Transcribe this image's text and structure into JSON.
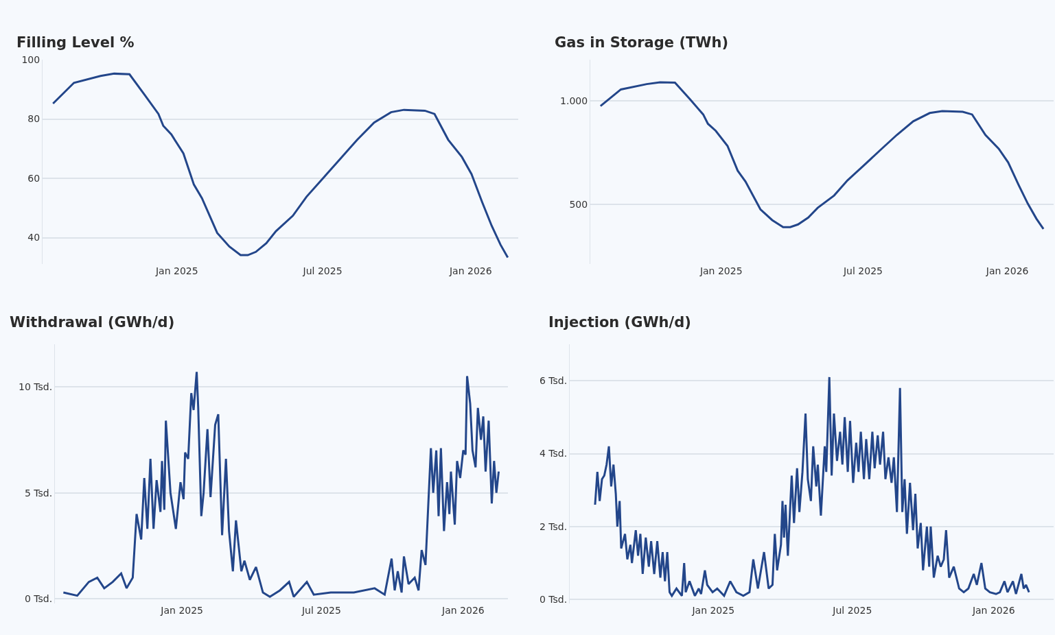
{
  "chart_data": [
    {
      "type": "line",
      "title": "Filling Level %",
      "color": "#23468a",
      "grid": "y",
      "x": [
        "2024-07-31",
        "2024-08-26",
        "2024-09-28",
        "2024-10-15",
        "2024-11-03",
        "2024-11-22",
        "2024-12-09",
        "2024-12-15",
        "2024-12-25",
        "2025-01-09",
        "2025-01-22",
        "2025-02-01",
        "2025-02-20",
        "2025-03-07",
        "2025-03-21",
        "2025-03-30",
        "2025-04-09",
        "2025-04-22",
        "2025-05-04",
        "2025-05-25",
        "2025-06-11",
        "2025-07-02",
        "2025-07-23",
        "2025-08-13",
        "2025-09-03",
        "2025-09-24",
        "2025-10-10",
        "2025-11-05",
        "2025-11-17",
        "2025-12-04",
        "2025-12-21",
        "2026-01-02",
        "2026-01-15",
        "2026-01-27",
        "2026-02-07",
        "2026-02-16"
      ],
      "values": [
        85.2,
        92.2,
        94.5,
        95.3,
        95.1,
        88.1,
        81.7,
        77.7,
        74.8,
        68.4,
        57.9,
        53.3,
        41.6,
        37,
        34.1,
        34.1,
        35.2,
        38.1,
        42.2,
        47.4,
        53.8,
        60.2,
        66.6,
        73,
        78.8,
        82.3,
        83.1,
        82.8,
        81.7,
        73,
        67.2,
        61.4,
        52.1,
        44,
        37.6,
        33.3
      ],
      "xlim": [
        "2024-07-18",
        "2026-03-01"
      ],
      "ylim": [
        31,
        100
      ],
      "yticks": [
        40,
        60,
        80,
        100
      ],
      "xticks": [
        {
          "value": "2025-01-01",
          "label": "Jan 2025"
        },
        {
          "value": "2025-07-01",
          "label": "Jul 2025"
        },
        {
          "value": "2026-01-01",
          "label": "Jan 2026"
        }
      ]
    },
    {
      "type": "line",
      "title": "Gas in Storage (TWh)",
      "color": "#23468a",
      "grid": "y",
      "x": [
        "2024-07-31",
        "2024-08-26",
        "2024-09-28",
        "2024-10-15",
        "2024-11-03",
        "2024-11-22",
        "2024-12-09",
        "2024-12-15",
        "2024-12-25",
        "2025-01-09",
        "2025-01-22",
        "2025-02-01",
        "2025-02-20",
        "2025-03-07",
        "2025-03-21",
        "2025-03-30",
        "2025-04-09",
        "2025-04-22",
        "2025-05-04",
        "2025-05-25",
        "2025-06-11",
        "2025-07-02",
        "2025-07-23",
        "2025-08-13",
        "2025-09-03",
        "2025-09-24",
        "2025-10-10",
        "2025-11-05",
        "2025-11-17",
        "2025-12-04",
        "2025-12-21",
        "2026-01-02",
        "2026-01-15",
        "2026-01-27",
        "2026-02-07",
        "2026-02-16"
      ],
      "values": [
        976,
        1056,
        1082,
        1091,
        1089,
        1009,
        935,
        890,
        856,
        783,
        663,
        610,
        476,
        424,
        390,
        390,
        403,
        436,
        483,
        543,
        616,
        689,
        763,
        836,
        902,
        942,
        951,
        948,
        935,
        836,
        769,
        703,
        597,
        504,
        431,
        381
      ],
      "xlim": [
        "2024-07-18",
        "2026-03-01"
      ],
      "ylim": [
        210,
        1200
      ],
      "yticks": [
        {
          "value": 500,
          "label": "500"
        },
        {
          "value": 1000,
          "label": "1.000"
        }
      ],
      "xticks": [
        {
          "value": "2025-01-01",
          "label": "Jan 2025"
        },
        {
          "value": "2025-07-01",
          "label": "Jul 2025"
        },
        {
          "value": "2026-01-01",
          "label": "Jan 2026"
        }
      ]
    },
    {
      "type": "line",
      "title": "Withdrawal (GWh/d)",
      "color": "#23468a",
      "grid": "y",
      "x": [
        "2024-07-31",
        "2024-08-18",
        "2024-09-02",
        "2024-09-13",
        "2024-09-22",
        "2024-10-03",
        "2024-10-14",
        "2024-10-21",
        "2024-10-29",
        "2024-11-03",
        "2024-11-09",
        "2024-11-13",
        "2024-11-17",
        "2024-11-21",
        "2024-11-25",
        "2024-11-29",
        "2024-12-04",
        "2024-12-06",
        "2024-12-09",
        "2024-12-11",
        "2024-12-17",
        "2024-12-24",
        "2024-12-30",
        "2025-01-03",
        "2025-01-05",
        "2025-01-09",
        "2025-01-13",
        "2025-01-16",
        "2025-01-20",
        "2025-01-22",
        "2025-01-26",
        "2025-01-29",
        "2025-02-03",
        "2025-02-07",
        "2025-02-13",
        "2025-02-17",
        "2025-02-22",
        "2025-02-27",
        "2025-03-03",
        "2025-03-08",
        "2025-03-12",
        "2025-03-19",
        "2025-03-23",
        "2025-03-30",
        "2025-04-07",
        "2025-04-16",
        "2025-04-25",
        "2025-05-08",
        "2025-05-20",
        "2025-05-26",
        "2025-06-12",
        "2025-06-21",
        "2025-07-13",
        "2025-08-12",
        "2025-09-08",
        "2025-09-21",
        "2025-09-30",
        "2025-10-04",
        "2025-10-08",
        "2025-10-13",
        "2025-10-16",
        "2025-10-22",
        "2025-10-30",
        "2025-11-04",
        "2025-11-08",
        "2025-11-13",
        "2025-11-20",
        "2025-11-23",
        "2025-11-27",
        "2025-11-30",
        "2025-12-03",
        "2025-12-07",
        "2025-12-11",
        "2025-12-14",
        "2025-12-16",
        "2025-12-21",
        "2025-12-24",
        "2025-12-28",
        "2026-01-01",
        "2026-01-04",
        "2026-01-06",
        "2026-01-10",
        "2026-01-13",
        "2026-01-17",
        "2026-01-20",
        "2026-01-24",
        "2026-01-27",
        "2026-01-30",
        "2026-02-03",
        "2026-02-07",
        "2026-02-10",
        "2026-02-13",
        "2026-02-16"
      ],
      "values": [
        0.3,
        0.15,
        0.8,
        1,
        0.5,
        0.8,
        1.2,
        0.5,
        1,
        4,
        2.8,
        5.7,
        3.3,
        6.6,
        3.3,
        5.6,
        4.1,
        6.5,
        4.2,
        8.4,
        5,
        3.3,
        5.5,
        4.7,
        6.9,
        6.6,
        9.7,
        8.9,
        10.7,
        9,
        3.9,
        5,
        8,
        4.8,
        8.2,
        8.7,
        3,
        6.6,
        3.2,
        1.3,
        3.7,
        1.3,
        1.8,
        0.9,
        1.5,
        0.3,
        0.1,
        0.4,
        0.8,
        0.1,
        0.8,
        0.2,
        0.3,
        0.3,
        0.5,
        0.2,
        1.9,
        0.4,
        1.3,
        0.3,
        2,
        0.7,
        1,
        0.4,
        2.3,
        1.6,
        7.1,
        5,
        7,
        3.9,
        7.1,
        3.2,
        5.5,
        4,
        6,
        3.5,
        6.5,
        5.7,
        7,
        6.8,
        10.5,
        9.2,
        7,
        6.2,
        9,
        7.5,
        8.6,
        6,
        8.4,
        4.5,
        6.5,
        5,
        6
      ],
      "xlim": [
        "2024-07-20",
        "2026-02-28"
      ],
      "ylim": [
        -0.2,
        12
      ],
      "yticks": [
        {
          "value": 0,
          "label": "0 Tsd."
        },
        {
          "value": 5,
          "label": "5 Tsd."
        },
        {
          "value": 10,
          "label": "10 Tsd."
        }
      ],
      "xticks": [
        {
          "value": "2025-01-01",
          "label": "Jan 2025"
        },
        {
          "value": "2025-07-01",
          "label": "Jul 2025"
        },
        {
          "value": "2026-01-01",
          "label": "Jan 2026"
        }
      ]
    },
    {
      "type": "line",
      "title": "Injection (GWh/d)",
      "color": "#23468a",
      "grid": "y",
      "x": [
        "2024-07-31",
        "2024-08-03",
        "2024-08-06",
        "2024-08-09",
        "2024-08-12",
        "2024-08-15",
        "2024-08-18",
        "2024-08-21",
        "2024-08-24",
        "2024-08-27",
        "2024-08-29",
        "2024-09-01",
        "2024-09-03",
        "2024-09-08",
        "2024-09-11",
        "2024-09-15",
        "2024-09-17",
        "2024-09-22",
        "2024-09-25",
        "2024-09-28",
        "2024-10-01",
        "2024-10-05",
        "2024-10-09",
        "2024-10-12",
        "2024-10-16",
        "2024-10-20",
        "2024-10-24",
        "2024-10-27",
        "2024-10-30",
        "2024-11-02",
        "2024-11-05",
        "2024-11-08",
        "2024-11-14",
        "2024-11-21",
        "2024-11-24",
        "2024-11-26",
        "2024-12-01",
        "2024-12-08",
        "2024-12-13",
        "2024-12-16",
        "2024-12-21",
        "2024-12-24",
        "2024-12-31",
        "2025-01-06",
        "2025-01-15",
        "2025-01-23",
        "2025-01-31",
        "2025-02-09",
        "2025-02-17",
        "2025-02-22",
        "2025-02-28",
        "2025-03-08",
        "2025-03-14",
        "2025-03-19",
        "2025-03-22",
        "2025-03-25",
        "2025-03-30",
        "2025-04-01",
        "2025-04-03",
        "2025-04-05",
        "2025-04-08",
        "2025-04-13",
        "2025-04-16",
        "2025-04-20",
        "2025-04-23",
        "2025-04-27",
        "2025-05-01",
        "2025-05-04",
        "2025-05-08",
        "2025-05-11",
        "2025-05-15",
        "2025-05-17",
        "2025-05-21",
        "2025-05-26",
        "2025-05-28",
        "2025-06-01",
        "2025-06-04",
        "2025-06-07",
        "2025-06-11",
        "2025-06-15",
        "2025-06-18",
        "2025-06-21",
        "2025-06-25",
        "2025-06-28",
        "2025-07-02",
        "2025-07-06",
        "2025-07-09",
        "2025-07-12",
        "2025-07-16",
        "2025-07-19",
        "2025-07-23",
        "2025-07-27",
        "2025-07-30",
        "2025-08-03",
        "2025-08-06",
        "2025-08-10",
        "2025-08-13",
        "2025-08-17",
        "2025-08-21",
        "2025-08-24",
        "2025-08-28",
        "2025-09-01",
        "2025-09-04",
        "2025-09-07",
        "2025-09-10",
        "2025-09-14",
        "2025-09-18",
        "2025-09-21",
        "2025-09-24",
        "2025-09-28",
        "2025-10-01",
        "2025-10-06",
        "2025-10-09",
        "2025-10-11",
        "2025-10-15",
        "2025-10-20",
        "2025-10-24",
        "2025-10-28",
        "2025-10-31",
        "2025-11-04",
        "2025-11-10",
        "2025-11-17",
        "2025-11-23",
        "2025-11-29",
        "2025-12-06",
        "2025-12-10",
        "2025-12-16",
        "2025-12-21",
        "2025-12-27",
        "2026-01-04",
        "2026-01-09",
        "2026-01-15",
        "2026-01-19",
        "2026-01-26",
        "2026-01-30",
        "2026-02-06",
        "2026-02-09",
        "2026-02-12",
        "2026-02-16"
      ],
      "values": [
        2.6,
        3.5,
        2.7,
        3.3,
        3.4,
        3.7,
        4.2,
        3.1,
        3.7,
        2.9,
        2,
        2.7,
        1.4,
        1.8,
        1.1,
        1.5,
        1,
        1.9,
        1.2,
        1.8,
        0.7,
        1.7,
        0.9,
        1.6,
        0.7,
        1.6,
        0.6,
        1.3,
        0.5,
        1.3,
        0.2,
        0.1,
        0.3,
        0.1,
        1,
        0.2,
        0.5,
        0.1,
        0.3,
        0.15,
        0.8,
        0.4,
        0.2,
        0.3,
        0.1,
        0.5,
        0.2,
        0.1,
        0.2,
        1.1,
        0.3,
        1.3,
        0.3,
        0.4,
        1.8,
        0.8,
        1.5,
        2.7,
        1.7,
        2.6,
        1.2,
        3.4,
        2.1,
        3.6,
        2.4,
        3.5,
        5.1,
        3.3,
        2.7,
        4.2,
        3.1,
        3.7,
        2.3,
        4.2,
        3.5,
        6.1,
        3.4,
        5.1,
        3.8,
        4.6,
        3.7,
        5,
        3.5,
        4.9,
        3.2,
        4.3,
        3.5,
        4.6,
        3.3,
        4.4,
        3.3,
        4.6,
        3.6,
        4.5,
        3.7,
        4.6,
        3.3,
        3.9,
        3.2,
        3.9,
        2.4,
        5.8,
        2.4,
        3.3,
        1.8,
        3.2,
        1.9,
        2.9,
        1.4,
        2.1,
        0.8,
        2,
        0.9,
        2,
        0.6,
        1.2,
        0.9,
        1.1,
        1.9,
        0.6,
        0.9,
        0.3,
        0.2,
        0.3,
        0.7,
        0.4,
        1,
        0.3,
        0.2,
        0.15,
        0.2,
        0.5,
        0.2,
        0.5,
        0.15,
        0.7,
        0.3,
        0.4,
        0.2
      ],
      "xlim": [
        "2024-06-28",
        "2026-03-20"
      ],
      "ylim": [
        -0.1,
        7
      ],
      "yticks": [
        {
          "value": 0,
          "label": "0 Tsd."
        },
        {
          "value": 2,
          "label": "2 Tsd."
        },
        {
          "value": 4,
          "label": "4 Tsd."
        },
        {
          "value": 6,
          "label": "6 Tsd."
        }
      ],
      "xticks": [
        {
          "value": "2025-01-01",
          "label": "Jan 2025"
        },
        {
          "value": "2025-07-01",
          "label": "Jul 2025"
        },
        {
          "value": "2026-01-01",
          "label": "Jan 2026"
        }
      ]
    }
  ]
}
